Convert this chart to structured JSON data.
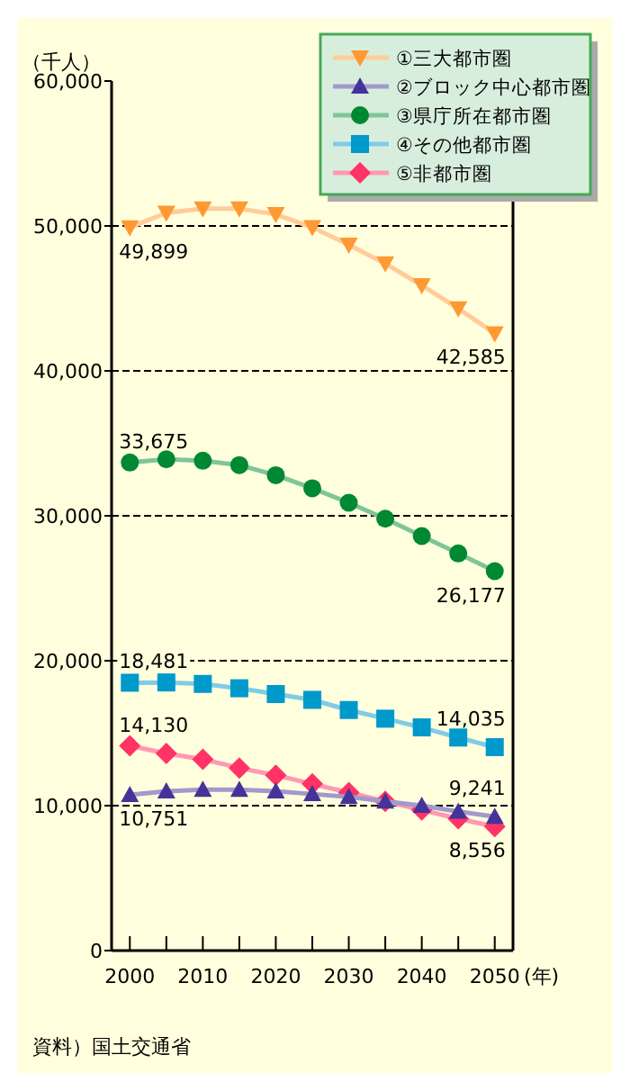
{
  "chart_data": {
    "type": "line",
    "ylabel": "（千人）",
    "xlabel": "(年)",
    "annotations": [
      "資料）国土交通省"
    ],
    "x": [
      2000,
      2005,
      2010,
      2015,
      2020,
      2025,
      2030,
      2035,
      2040,
      2045,
      2050
    ],
    "xlim": [
      1997.5,
      2052.5
    ],
    "xticks": [
      2000,
      {
        "value": 2005,
        "label": null
      },
      2010,
      {
        "value": 2015,
        "label": null
      },
      2020,
      {
        "value": 2025,
        "label": null
      },
      2030,
      {
        "value": 2035,
        "label": null
      },
      2040,
      {
        "value": 2045,
        "label": null
      },
      2050
    ],
    "ylim": [
      0,
      60000
    ],
    "yticks": [
      0,
      {
        "value": 10000,
        "label": "10,000"
      },
      {
        "value": 20000,
        "label": "20,000"
      },
      {
        "value": 30000,
        "label": "30,000"
      },
      {
        "value": 40000,
        "label": "40,000"
      },
      {
        "value": 50000,
        "label": "50,000"
      },
      {
        "value": 60000,
        "label": "60,000"
      }
    ],
    "grid": "y",
    "legend": "top right",
    "line_style": "solid",
    "series": [
      {
        "name": "①三大都市圏",
        "color": "#ff9933",
        "marker": "triangle-down",
        "values": [
          49899,
          50900,
          51200,
          51200,
          50800,
          49900,
          48700,
          47400,
          45900,
          44300,
          42585
        ],
        "value_labels": [
          "49,899",
          null,
          null,
          null,
          null,
          null,
          null,
          null,
          null,
          null,
          "42,585"
        ]
      },
      {
        "name": "②ブロック中心都市圏",
        "color": "#443399",
        "marker": "triangle",
        "values": [
          10751,
          11000,
          11100,
          11100,
          11000,
          10800,
          10600,
          10300,
          10000,
          9600,
          9241
        ],
        "value_labels": [
          "10,751",
          null,
          null,
          null,
          null,
          null,
          null,
          null,
          null,
          null,
          "9,241"
        ]
      },
      {
        "name": "③県庁所在都市圏",
        "color": "#008833",
        "marker": "circle",
        "values": [
          33675,
          33900,
          33800,
          33500,
          32800,
          31900,
          30900,
          29800,
          28600,
          27400,
          26177
        ],
        "value_labels": [
          "33,675",
          null,
          null,
          null,
          null,
          null,
          null,
          null,
          null,
          null,
          "26,177"
        ]
      },
      {
        "name": "④その他都市圏",
        "color": "#0099cc",
        "marker": "square",
        "values": [
          18481,
          18500,
          18400,
          18100,
          17700,
          17300,
          16600,
          16000,
          15400,
          14700,
          14035
        ],
        "value_labels": [
          "18,481",
          null,
          null,
          null,
          null,
          null,
          null,
          null,
          null,
          null,
          "14,035"
        ]
      },
      {
        "name": "⑤非都市圏",
        "color": "#ff3366",
        "marker": "diamond",
        "values": [
          14130,
          13600,
          13200,
          12600,
          12100,
          11500,
          10900,
          10300,
          9700,
          9100,
          8556
        ],
        "value_labels": [
          "14,130",
          null,
          null,
          null,
          null,
          null,
          null,
          null,
          null,
          null,
          "8,556"
        ]
      }
    ]
  }
}
